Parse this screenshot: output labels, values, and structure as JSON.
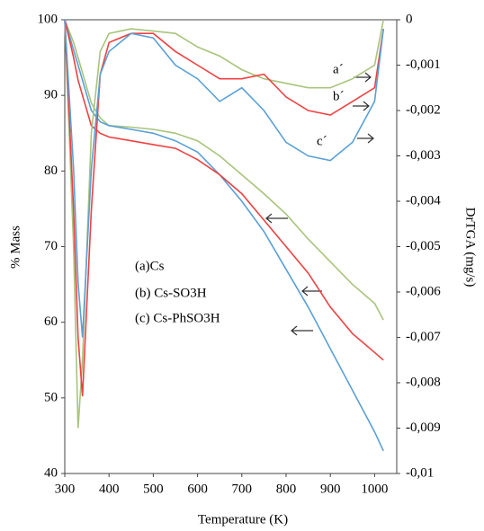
{
  "chart_data": {
    "type": "line",
    "xlabel": "Temperature  (K)",
    "ylabel": "% Mass",
    "y2label": "DrTGA (mg/s)",
    "x": [
      300,
      320,
      330,
      340,
      360,
      380,
      400,
      450,
      500,
      550,
      600,
      650,
      700,
      750,
      800,
      850,
      900,
      950,
      1000,
      1020
    ],
    "xlim": [
      300,
      1050
    ],
    "xticks": [
      300,
      400,
      500,
      600,
      700,
      800,
      900,
      1000
    ],
    "ylim": [
      40,
      100
    ],
    "yticks": [
      40,
      50,
      60,
      70,
      80,
      90,
      100
    ],
    "y2lim": [
      -0.01,
      0
    ],
    "y2ticks": [
      {
        "value": -0.01,
        "label": "-0,01"
      },
      {
        "value": -0.009,
        "label": "-0,009"
      },
      {
        "value": -0.008,
        "label": "-0,008"
      },
      {
        "value": -0.007,
        "label": "-0,007"
      },
      {
        "value": -0.006,
        "label": "-0,006"
      },
      {
        "value": -0.005,
        "label": "-0,005"
      },
      {
        "value": -0.004,
        "label": "-0,004"
      },
      {
        "value": -0.003,
        "label": "-0,003"
      },
      {
        "value": -0.002,
        "label": "-0,002"
      },
      {
        "value": -0.001,
        "label": "-0,001"
      },
      0
    ],
    "series": [
      {
        "name": "(a)Cs",
        "color": "#a8c47c",
        "values": [
          100,
          97,
          95,
          93,
          89,
          87,
          86,
          85.8,
          85.5,
          85,
          84,
          82,
          79.5,
          77,
          74.3,
          71,
          68,
          65,
          62.5,
          60.3
        ]
      },
      {
        "name": "(b) Cs-SO3H",
        "color": "#5aa0d6",
        "values": [
          100,
          96,
          94,
          92,
          88,
          86.5,
          86,
          85.5,
          85,
          84,
          82.5,
          79.5,
          76,
          72,
          67,
          62,
          56.5,
          51,
          45.5,
          43
        ]
      },
      {
        "name": "(c) Cs-PhSO3H",
        "color": "#f04040",
        "values": [
          100,
          95,
          92,
          90,
          86,
          85,
          84.5,
          84,
          83.5,
          83,
          81.5,
          79.5,
          77,
          73.5,
          70,
          66.5,
          62,
          58.5,
          56,
          55
        ]
      },
      {
        "name": "a´",
        "color": "#a8c47c",
        "axis": "y2",
        "values": [
          0,
          -0.005,
          -0.009,
          -0.0075,
          -0.0025,
          -0.0007,
          -0.0003,
          -0.0002,
          -0.00025,
          -0.0003,
          -0.0006,
          -0.0008,
          -0.0011,
          -0.0013,
          -0.0014,
          -0.0015,
          -0.0015,
          -0.0013,
          -0.001,
          0
        ]
      },
      {
        "name": "b´",
        "color": "#f04040",
        "axis": "y2",
        "values": [
          0,
          -0.0042,
          -0.007,
          -0.0083,
          -0.0042,
          -0.0012,
          -0.0005,
          -0.0003,
          -0.0003,
          -0.0007,
          -0.001,
          -0.0013,
          -0.0013,
          -0.0012,
          -0.0017,
          -0.002,
          -0.0021,
          -0.0018,
          -0.0015,
          -0.0002
        ]
      },
      {
        "name": "c´",
        "color": "#5aa0d6",
        "axis": "y2",
        "values": [
          0,
          -0.0033,
          -0.0058,
          -0.007,
          -0.0033,
          -0.0012,
          -0.0007,
          -0.0003,
          -0.0004,
          -0.001,
          -0.0013,
          -0.0018,
          -0.0015,
          -0.002,
          -0.0027,
          -0.003,
          -0.0031,
          -0.0027,
          -0.0018,
          -0.0002
        ]
      }
    ]
  }
}
